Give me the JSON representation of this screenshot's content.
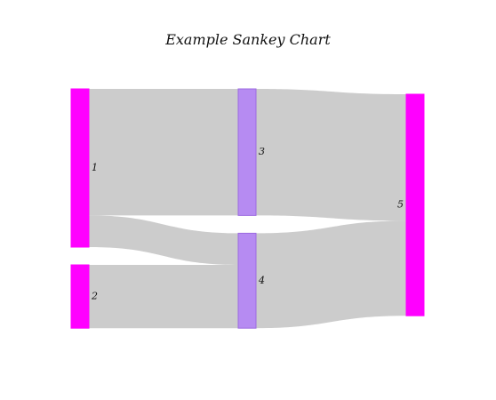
{
  "chart_data": {
    "type": "sankey",
    "title": "Example Sankey Chart",
    "nodes": [
      {
        "id": "1",
        "label": "1",
        "column": 0,
        "color": "#ff00ff"
      },
      {
        "id": "2",
        "label": "2",
        "column": 0,
        "color": "#ff00ff"
      },
      {
        "id": "3",
        "label": "3",
        "column": 1,
        "color": "#b68bf2"
      },
      {
        "id": "4",
        "label": "4",
        "column": 1,
        "color": "#b68bf2"
      },
      {
        "id": "5",
        "label": "5",
        "column": 2,
        "color": "#ff00ff"
      }
    ],
    "links": [
      {
        "source": "1",
        "target": "3",
        "value": 8
      },
      {
        "source": "1",
        "target": "4",
        "value": 2
      },
      {
        "source": "2",
        "target": "4",
        "value": 4
      },
      {
        "source": "3",
        "target": "5",
        "value": 8
      },
      {
        "source": "4",
        "target": "5",
        "value": 6
      }
    ],
    "colors": {
      "link": "#cccccc",
      "node_outline": "#9c6be0"
    }
  }
}
